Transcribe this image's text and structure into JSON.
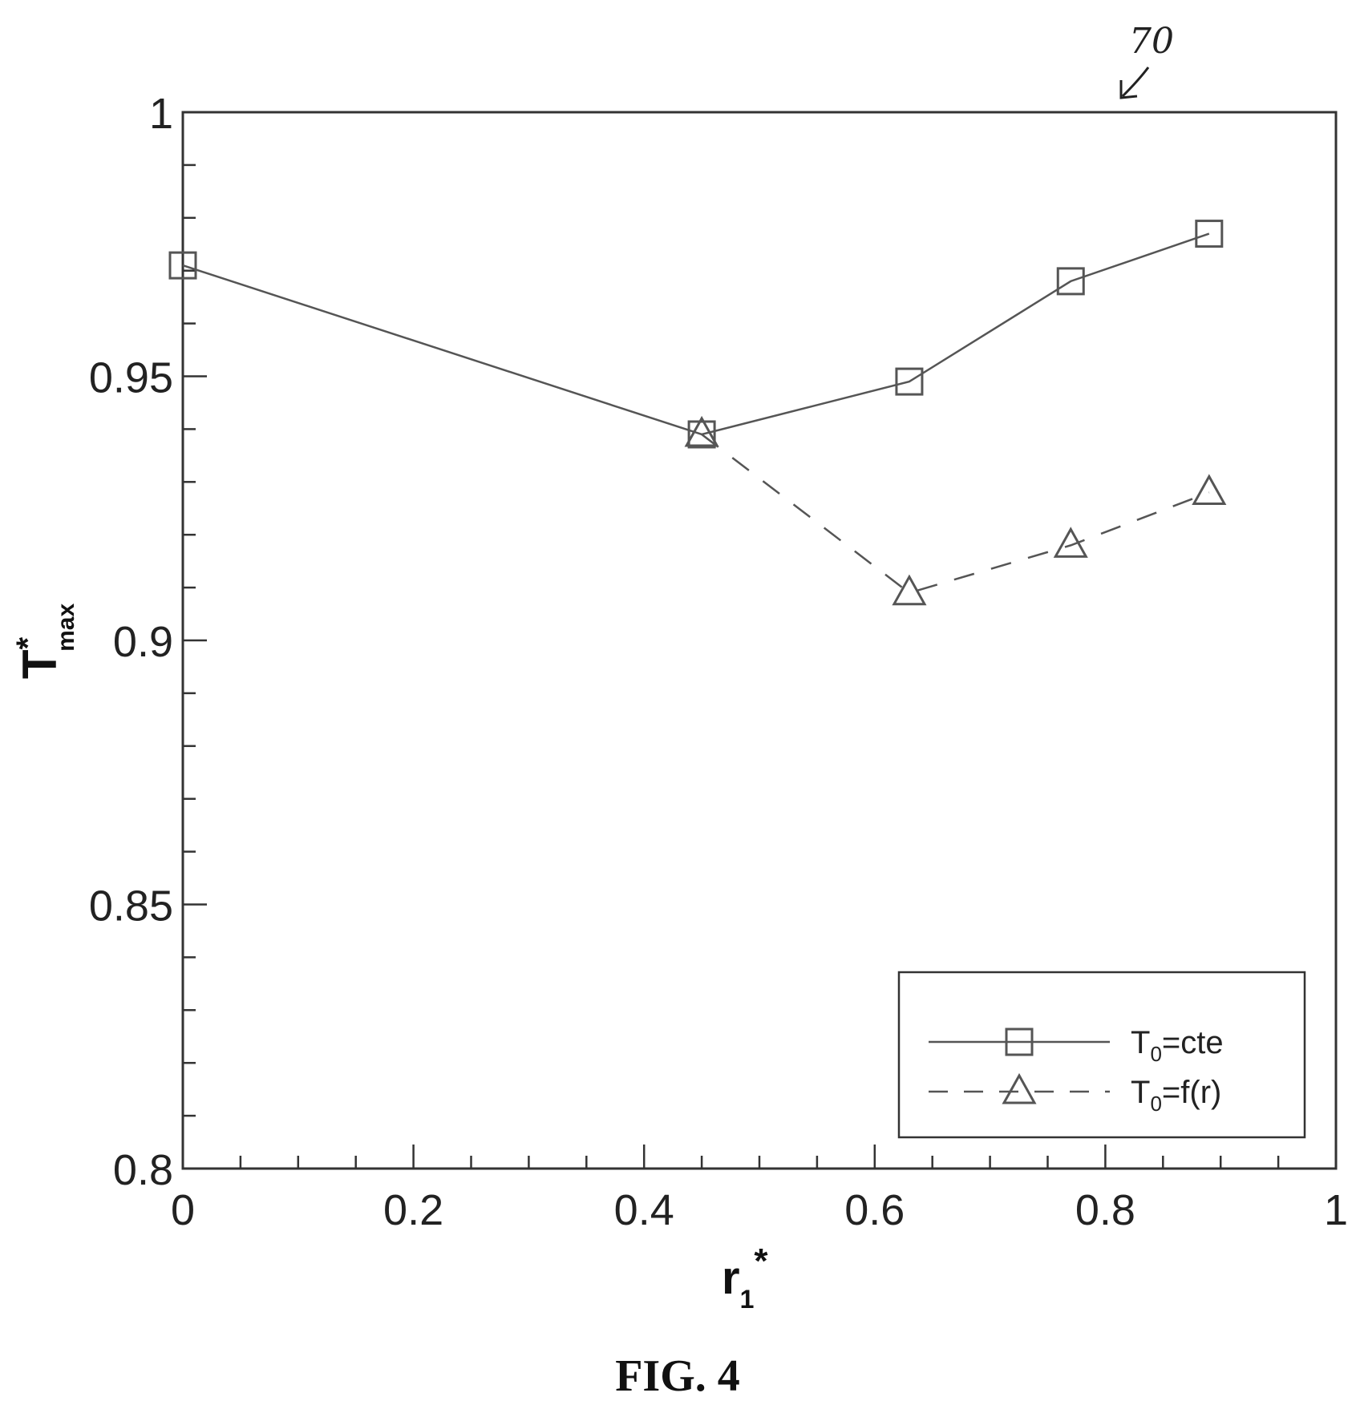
{
  "chart_data": {
    "type": "line",
    "x_ticks": [
      "0",
      "0.2",
      "0.4",
      "0.6",
      "0.8",
      "1"
    ],
    "y_ticks": [
      "0.8",
      "0.85",
      "0.9",
      "0.95",
      "1"
    ],
    "xlim": [
      0,
      1
    ],
    "ylim": [
      0.8,
      1
    ],
    "xlabel_main": "r",
    "xlabel_sub": "1",
    "xlabel_sup": "*",
    "ylabel_main": "T",
    "ylabel_sup": "*",
    "ylabel_sub": "max",
    "legend_position": "bottom-right",
    "grid": false,
    "series": [
      {
        "name_main": "T",
        "name_sub": "0",
        "name_rest": "=cte",
        "style": "solid",
        "marker": "square",
        "color": "#555555",
        "points": [
          [
            0.0,
            0.971
          ],
          [
            0.45,
            0.939
          ],
          [
            0.63,
            0.949
          ],
          [
            0.77,
            0.968
          ],
          [
            0.89,
            0.977
          ]
        ]
      },
      {
        "name_main": "T",
        "name_sub": "0",
        "name_rest": "=f(r)",
        "style": "dashed",
        "marker": "triangle",
        "color": "#555555",
        "points": [
          [
            0.45,
            0.939
          ],
          [
            0.63,
            0.909
          ],
          [
            0.77,
            0.918
          ],
          [
            0.89,
            0.928
          ]
        ]
      }
    ]
  },
  "caption": "FIG. 4",
  "reference_numeral": "70"
}
